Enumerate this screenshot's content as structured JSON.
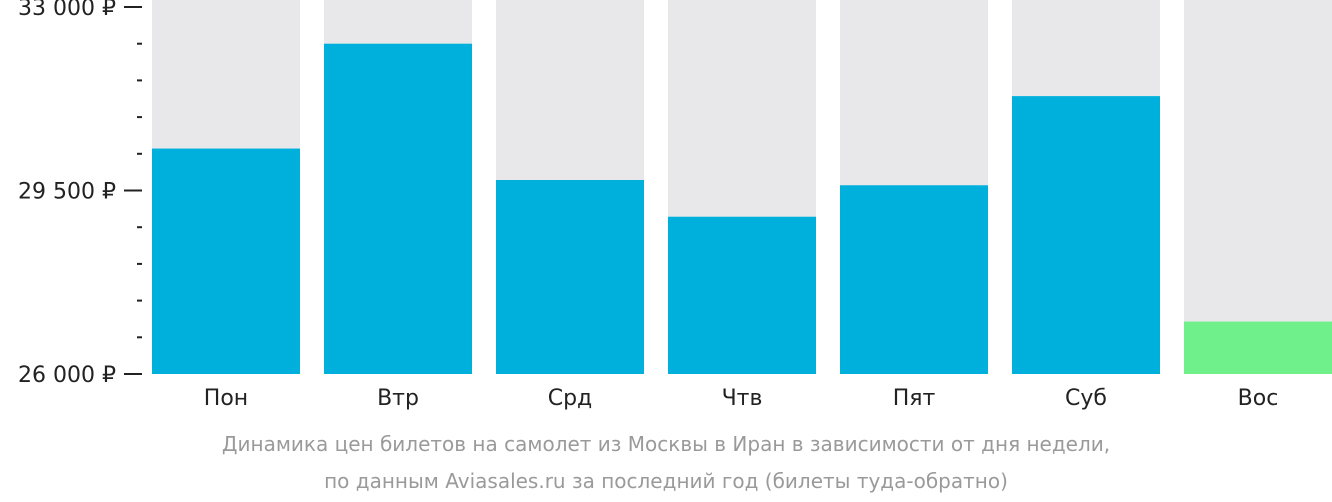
{
  "chart_data": {
    "type": "bar",
    "categories": [
      "Пон",
      "Втр",
      "Срд",
      "Чтв",
      "Пят",
      "Суб",
      "Вос"
    ],
    "values": [
      30300,
      32300,
      29700,
      29000,
      29600,
      31300,
      27000
    ],
    "ylim": [
      26000,
      33000
    ],
    "yticks": [
      {
        "value": 33000,
        "label": "33 000 ₽"
      },
      {
        "value": 29500,
        "label": "29 500 ₽"
      },
      {
        "value": 26000,
        "label": "26 000 ₽"
      }
    ],
    "minor_tick_step": 700,
    "colors": {
      "bar": "#00b0dc",
      "highlight": "#6ff08a",
      "background_bar": "#e8e8ea",
      "axis": "#222222"
    },
    "highlight_index": 6,
    "grid": false,
    "legend": "none"
  },
  "caption": {
    "line1": "Динамика цен билетов на самолет из Москвы в Иран в зависимости от дня недели,",
    "line2": "по данным Aviasales.ru за последний год (билеты туда-обратно)"
  }
}
